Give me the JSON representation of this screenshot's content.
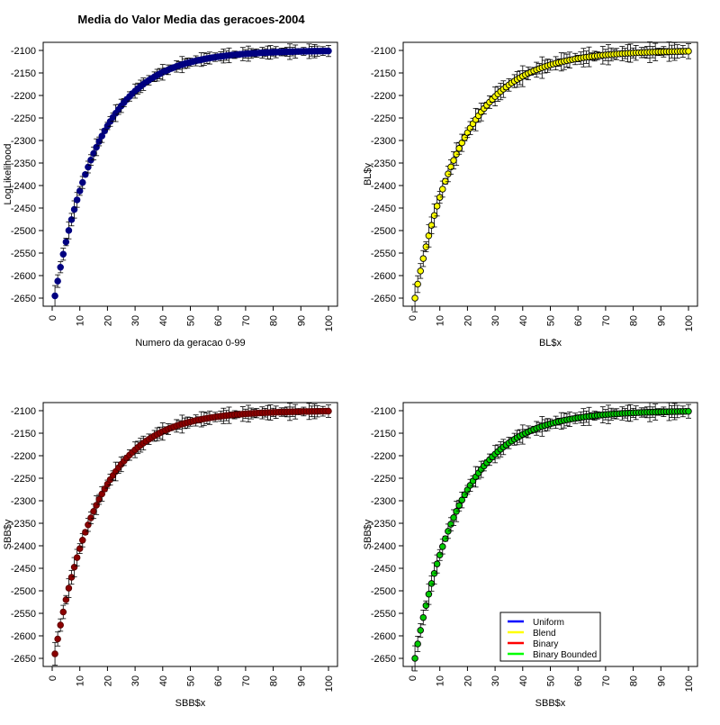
{
  "title": "Media do Valor Media das geracoes-2004",
  "legend": {
    "items": [
      {
        "label": "Uniform",
        "color": "#0000ff"
      },
      {
        "label": "Blend",
        "color": "#ffff00"
      },
      {
        "label": "Binary",
        "color": "#ff0000"
      },
      {
        "label": "Binary Bounded",
        "color": "#00ff00"
      }
    ],
    "placement": "bottom-right of bottom-right panel"
  },
  "chart_data": [
    {
      "type": "scatter",
      "xlabel": "Numero da geracao 0-99",
      "ylabel": "LogLikelihood",
      "xlim": [
        0,
        100
      ],
      "ylim": [
        -2660,
        -2090
      ],
      "x_ticks": [
        0,
        10,
        20,
        30,
        40,
        50,
        60,
        70,
        80,
        90,
        100
      ],
      "y_ticks": [
        -2100,
        -2150,
        -2200,
        -2250,
        -2300,
        -2350,
        -2400,
        -2450,
        -2500,
        -2550,
        -2600,
        -2650
      ],
      "point_color": "#000080",
      "point_stroke": "#000080",
      "model": {
        "start": -2645,
        "end": -2100,
        "k": 0.062,
        "err": 18
      },
      "grid": false
    },
    {
      "type": "scatter",
      "xlabel": "BL$x",
      "ylabel": "BL$y",
      "xlim": [
        0,
        100
      ],
      "ylim": [
        -2660,
        -2090
      ],
      "x_ticks": [
        0,
        10,
        20,
        30,
        40,
        50,
        60,
        70,
        80,
        90,
        100
      ],
      "y_ticks": [
        -2100,
        -2150,
        -2200,
        -2250,
        -2300,
        -2350,
        -2400,
        -2450,
        -2500,
        -2550,
        -2600,
        -2650
      ],
      "point_color": "#ffff00",
      "point_stroke": "#000000",
      "model": {
        "start": -2650,
        "end": -2100,
        "k": 0.058,
        "err": 24
      },
      "grid": false
    },
    {
      "type": "scatter",
      "xlabel": "SBB$x",
      "ylabel": "SBB$y",
      "xlim": [
        0,
        100
      ],
      "ylim": [
        -2660,
        -2090
      ],
      "x_ticks": [
        0,
        10,
        20,
        30,
        40,
        50,
        60,
        70,
        80,
        90,
        100
      ],
      "y_ticks": [
        -2100,
        -2150,
        -2200,
        -2250,
        -2300,
        -2350,
        -2400,
        -2450,
        -2500,
        -2550,
        -2600,
        -2650
      ],
      "point_color": "#8b0000",
      "point_stroke": "#5a0000",
      "model": {
        "start": -2640,
        "end": -2100,
        "k": 0.063,
        "err": 20
      },
      "grid": false
    },
    {
      "type": "scatter",
      "xlabel": "SBB$x",
      "ylabel": "SBB$y",
      "xlim": [
        0,
        100
      ],
      "ylim": [
        -2660,
        -2090
      ],
      "x_ticks": [
        0,
        10,
        20,
        30,
        40,
        50,
        60,
        70,
        80,
        90,
        100
      ],
      "y_ticks": [
        -2100,
        -2150,
        -2200,
        -2250,
        -2300,
        -2350,
        -2400,
        -2450,
        -2500,
        -2550,
        -2600,
        -2650
      ],
      "point_color": "#00cc00",
      "point_stroke": "#000000",
      "model": {
        "start": -2650,
        "end": -2100,
        "k": 0.06,
        "err": 22
      },
      "grid": false
    }
  ]
}
